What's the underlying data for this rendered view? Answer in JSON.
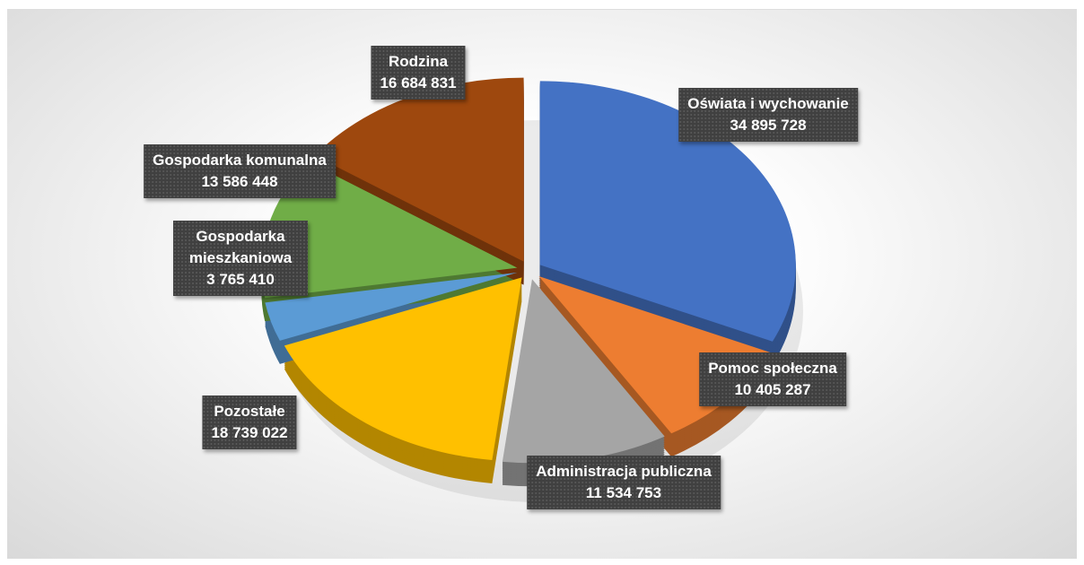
{
  "chart_data": {
    "type": "pie",
    "categories": [
      "Oświata i wychowanie",
      "Pomoc społeczna",
      "Administracja publiczna",
      "Pozostałe",
      "Gospodarka mieszkaniowa",
      "Gospodarka komunalna",
      "Rodzina"
    ],
    "values": [
      34895728,
      10405287,
      11534753,
      18739022,
      3765410,
      13586448,
      16684831
    ],
    "value_labels": [
      "34 895 728",
      "10 405 287",
      "11 534 753",
      "18 739 022",
      "3 765 410",
      "13 586 448",
      "16 684 831"
    ],
    "colors": [
      "#4472c4",
      "#ed7d31",
      "#a5a5a5",
      "#ffc000",
      "#5b9bd5",
      "#70ad47",
      "#9e480e"
    ]
  }
}
